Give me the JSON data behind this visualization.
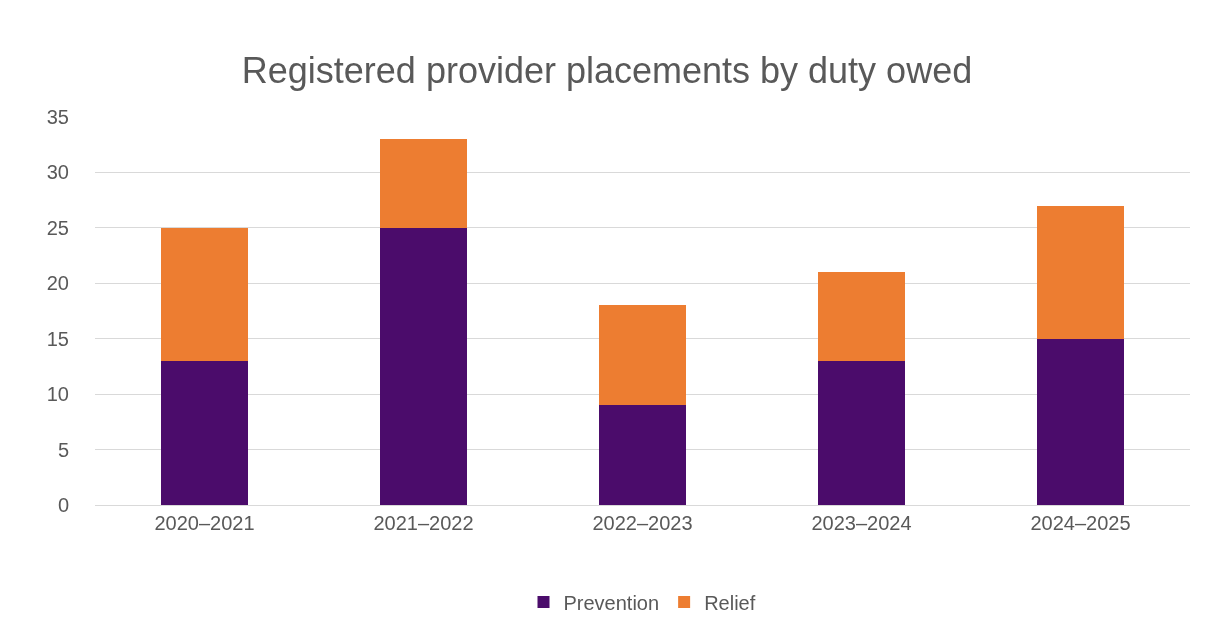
{
  "chart_data": {
    "type": "bar",
    "title": "Registered provider placements by duty owed",
    "categories": [
      "2020–2021",
      "2021–2022",
      "2022–2023",
      "2023–2024",
      "2024–2025"
    ],
    "stacked": true,
    "series": [
      {
        "name": "Prevention",
        "color": "#4b0c6b",
        "values": [
          13,
          25,
          9,
          13,
          15
        ]
      },
      {
        "name": "Relief",
        "color": "#ed7d31",
        "values": [
          12,
          8,
          9,
          8,
          12
        ]
      }
    ],
    "ylim": [
      0,
      35
    ],
    "yticks": [
      0,
      5,
      10,
      15,
      20,
      25,
      30,
      35
    ],
    "grid": "y",
    "legend": "bottom"
  }
}
